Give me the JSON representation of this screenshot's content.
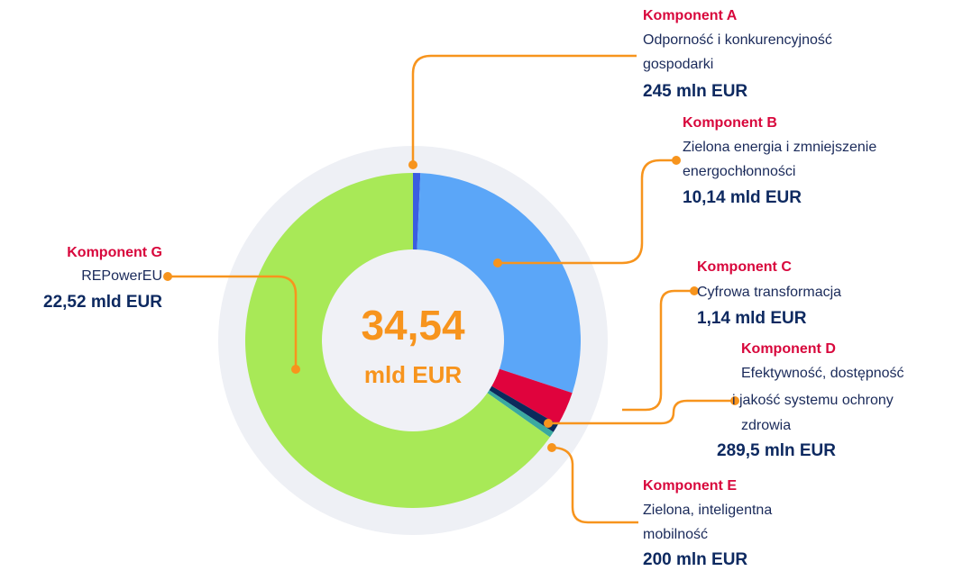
{
  "chart_data": {
    "type": "pie",
    "center_text": [
      "34,54",
      "mld EUR"
    ],
    "categories": [
      "Komponent A",
      "Komponent B",
      "Komponent C",
      "Komponent D",
      "Komponent E",
      "Komponent G"
    ],
    "descriptions": [
      [
        "Odporność i konkurencyjność",
        "gospodarki"
      ],
      [
        "Zielona energia i zmniejszenie",
        "energochłonności"
      ],
      [
        "Cyfrowa transformacja"
      ],
      [
        "Efektywność, dostępność",
        "i jakość systemu ochrony",
        "zdrowia"
      ],
      [
        "Zielona, inteligentna",
        "mobilność"
      ],
      [
        "REPowerEU"
      ]
    ],
    "values": [
      0.245,
      10.14,
      1.14,
      0.2895,
      0.2,
      22.52
    ],
    "value_labels": [
      "245 mln EUR",
      "10,14 mld EUR",
      "1,14 mld EUR",
      "289,5 mln EUR",
      "200 mln EUR",
      "22,52 mld EUR"
    ],
    "colors": [
      "#3a5ee0",
      "#5ba6f8",
      "#e0033d",
      "#0b2a5c",
      "#3aa9a0",
      "#a8e957"
    ]
  }
}
